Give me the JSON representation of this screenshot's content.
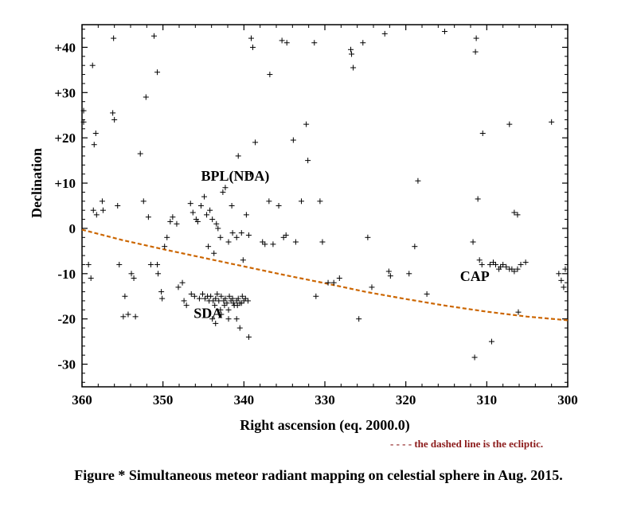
{
  "chart_data": {
    "type": "scatter",
    "title": "",
    "xlabel": "Right ascension (eq. 2000.0)",
    "ylabel": "Declination",
    "xlim": [
      360,
      300
    ],
    "ylim": [
      -35,
      45
    ],
    "x_ticks": [
      360,
      350,
      340,
      330,
      320,
      310,
      300
    ],
    "x_tick_labels": [
      "360",
      "350",
      "340",
      "330",
      "320",
      "310",
      "300"
    ],
    "y_ticks": [
      40,
      30,
      20,
      10,
      0,
      -10,
      -20,
      -30
    ],
    "y_tick_labels": [
      "+40",
      "+30",
      "+20",
      "+10",
      "0",
      "-10",
      "-20",
      "-30"
    ],
    "grid": false,
    "series": [
      {
        "name": "meteor radiants",
        "marker": "plus",
        "color": "#000000",
        "points": [
          [
            359.8,
            26
          ],
          [
            359.8,
            23.5
          ],
          [
            359.2,
            -8
          ],
          [
            358.9,
            -11
          ],
          [
            358.7,
            36
          ],
          [
            358.6,
            4
          ],
          [
            358.5,
            18.5
          ],
          [
            358.3,
            21
          ],
          [
            358.2,
            3
          ],
          [
            357.5,
            6
          ],
          [
            357.4,
            4
          ],
          [
            356.1,
            42
          ],
          [
            356.2,
            25.5
          ],
          [
            356,
            24
          ],
          [
            355.6,
            5
          ],
          [
            355.4,
            -8
          ],
          [
            354.9,
            -19.5
          ],
          [
            354.7,
            -15
          ],
          [
            354.3,
            -19
          ],
          [
            353.9,
            -10
          ],
          [
            353.6,
            -11
          ],
          [
            353.4,
            -19.5
          ],
          [
            352.8,
            16.5
          ],
          [
            352.4,
            6
          ],
          [
            352.1,
            29
          ],
          [
            351.8,
            2.5
          ],
          [
            351.5,
            -8
          ],
          [
            351.1,
            42.5
          ],
          [
            350.7,
            34.5
          ],
          [
            350.7,
            -8
          ],
          [
            350.6,
            -10
          ],
          [
            350.2,
            -14
          ],
          [
            350.1,
            -15.5
          ],
          [
            349.8,
            -4
          ],
          [
            349.5,
            -2
          ],
          [
            349.1,
            1.5
          ],
          [
            348.8,
            2.5
          ],
          [
            348.3,
            1
          ],
          [
            348.1,
            -13
          ],
          [
            347.4,
            -16
          ],
          [
            347.1,
            -17
          ],
          [
            347.6,
            -12
          ],
          [
            346.6,
            5.5
          ],
          [
            346.3,
            3.5
          ],
          [
            345.9,
            2
          ],
          [
            345.7,
            1.5
          ],
          [
            345.3,
            5
          ],
          [
            344.9,
            7
          ],
          [
            344.6,
            3
          ],
          [
            344.4,
            -4
          ],
          [
            343.7,
            -5.5
          ],
          [
            346.5,
            -14.5
          ],
          [
            346.1,
            -15
          ],
          [
            345.5,
            -15.5
          ],
          [
            345.1,
            -14.5
          ],
          [
            344.8,
            -15.5
          ],
          [
            344.5,
            -15
          ],
          [
            344.3,
            -16
          ],
          [
            344.1,
            -15
          ],
          [
            343.8,
            -16
          ],
          [
            343.5,
            -15.5
          ],
          [
            343.3,
            -14.5
          ],
          [
            343.1,
            -16
          ],
          [
            342.8,
            -15
          ],
          [
            342.5,
            -16
          ],
          [
            342.3,
            -15.5
          ],
          [
            342.1,
            -16.5
          ],
          [
            341.8,
            -15
          ],
          [
            341.6,
            -16
          ],
          [
            341.4,
            -15.5
          ],
          [
            341.2,
            -17
          ],
          [
            340.9,
            -16
          ],
          [
            340.7,
            -15.5
          ],
          [
            340.5,
            -16.5
          ],
          [
            340.2,
            -15
          ],
          [
            340,
            -16
          ],
          [
            339.8,
            -15.5
          ],
          [
            339.5,
            -16
          ],
          [
            343.6,
            -17
          ],
          [
            342.9,
            -18
          ],
          [
            342.4,
            -17
          ],
          [
            341.9,
            -18
          ],
          [
            341.3,
            -16.5
          ],
          [
            340.8,
            -17
          ],
          [
            340.3,
            -16.5
          ],
          [
            343.9,
            -20
          ],
          [
            343.5,
            -21
          ],
          [
            342.8,
            -19
          ],
          [
            341.9,
            -20
          ],
          [
            340.9,
            -20
          ],
          [
            340.5,
            -22
          ],
          [
            339.4,
            -24
          ],
          [
            344.2,
            4
          ],
          [
            343.9,
            2
          ],
          [
            343.4,
            1
          ],
          [
            343.2,
            0
          ],
          [
            342.9,
            -2
          ],
          [
            342.6,
            8
          ],
          [
            342.3,
            9
          ],
          [
            341.5,
            5
          ],
          [
            341.9,
            -3
          ],
          [
            341.4,
            -1
          ],
          [
            340.9,
            -2
          ],
          [
            340.3,
            -1
          ],
          [
            340.1,
            -7
          ],
          [
            339.7,
            3
          ],
          [
            339.4,
            -1.5
          ],
          [
            339.2,
            12
          ],
          [
            340.7,
            16
          ],
          [
            339.1,
            42
          ],
          [
            338.9,
            40
          ],
          [
            338.6,
            19
          ],
          [
            337.7,
            -3
          ],
          [
            337.4,
            -3.5
          ],
          [
            336.8,
            34
          ],
          [
            336.9,
            6
          ],
          [
            336.4,
            -3.5
          ],
          [
            335.7,
            5
          ],
          [
            335.1,
            -2
          ],
          [
            334.8,
            -1.5
          ],
          [
            334.7,
            41
          ],
          [
            335.3,
            41.5
          ],
          [
            333.9,
            19.5
          ],
          [
            333.6,
            -3
          ],
          [
            332.9,
            6
          ],
          [
            332.3,
            23
          ],
          [
            332.1,
            15
          ],
          [
            331.3,
            41
          ],
          [
            331.1,
            -15
          ],
          [
            330.6,
            6
          ],
          [
            330.3,
            -3
          ],
          [
            329.6,
            -12
          ],
          [
            328.9,
            -12
          ],
          [
            328.2,
            -11
          ],
          [
            326.8,
            39.5
          ],
          [
            326.7,
            38.5
          ],
          [
            326.5,
            35.5
          ],
          [
            325.8,
            -20
          ],
          [
            325.3,
            41
          ],
          [
            324.7,
            -2
          ],
          [
            324.2,
            -13
          ],
          [
            322.6,
            43
          ],
          [
            322.1,
            -9.5
          ],
          [
            321.9,
            -10.5
          ],
          [
            319.6,
            -10
          ],
          [
            318.9,
            -4
          ],
          [
            318.5,
            10.5
          ],
          [
            317.4,
            -14.5
          ],
          [
            315.2,
            43.5
          ],
          [
            311.7,
            -3
          ],
          [
            311.3,
            42
          ],
          [
            311.4,
            39
          ],
          [
            311.1,
            6.5
          ],
          [
            310.9,
            -7
          ],
          [
            310.6,
            -8
          ],
          [
            310.5,
            21
          ],
          [
            309.6,
            -8
          ],
          [
            309.4,
            -25
          ],
          [
            309.2,
            -7.5
          ],
          [
            308.9,
            -8
          ],
          [
            308.5,
            -9
          ],
          [
            308.3,
            -8.5
          ],
          [
            308,
            -8
          ],
          [
            307.6,
            -8.5
          ],
          [
            307.2,
            -9
          ],
          [
            306.9,
            -9
          ],
          [
            306.6,
            -9.5
          ],
          [
            306.2,
            -9
          ],
          [
            305.8,
            -8
          ],
          [
            305.2,
            -7.5
          ],
          [
            307.2,
            23
          ],
          [
            306.6,
            3.5
          ],
          [
            306.2,
            3
          ],
          [
            306.1,
            -18.5
          ],
          [
            311.5,
            -28.5
          ],
          [
            302,
            23.5
          ],
          [
            301.1,
            -10
          ],
          [
            300.8,
            -11.5
          ],
          [
            300.5,
            -13
          ],
          [
            300.3,
            -9
          ]
        ]
      },
      {
        "name": "ecliptic",
        "style": "dashed",
        "color": "#cc6600",
        "x": [
          360,
          355,
          350,
          345,
          340,
          335,
          330,
          325,
          320,
          315,
          310,
          305,
          300
        ],
        "y": [
          -0.3,
          -2.6,
          -4.6,
          -6.5,
          -8.4,
          -10.3,
          -12.1,
          -14.0,
          -15.6,
          -17.1,
          -18.4,
          -19.5,
          -20.3
        ]
      }
    ],
    "annotations": [
      {
        "text": "BPL(NDA)",
        "x": 345.3,
        "y": 10.5
      },
      {
        "text": "SDA",
        "x": 346.2,
        "y": -19.8
      },
      {
        "text": "CAP",
        "x": 313.3,
        "y": -11.6
      }
    ],
    "legend_note": "- - - - the dashed line is the ecliptic.",
    "caption": "Figure * Simultaneous meteor radiant mapping on celestial sphere in Aug. 2015."
  }
}
